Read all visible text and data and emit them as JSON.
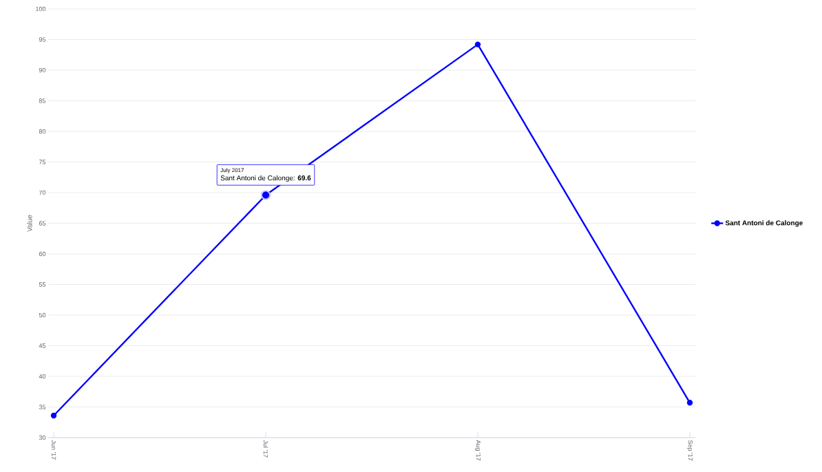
{
  "chart_data": {
    "type": "line",
    "ylabel": "Value",
    "categories": [
      "Jun '17",
      "Jul '17",
      "Aug '17",
      "Sep '17"
    ],
    "series": [
      {
        "name": "Sant Antoni de Calonge",
        "color": "#0000ff",
        "values": [
          33.6,
          69.6,
          94.2,
          35.7
        ]
      }
    ],
    "ylim": [
      30,
      100
    ],
    "yticks": [
      30,
      35,
      40,
      45,
      50,
      55,
      60,
      65,
      70,
      75,
      80,
      85,
      90,
      95,
      100
    ],
    "grid": "y",
    "legend": "right",
    "marker": "circle",
    "line_style": "solid",
    "annotations": [
      "July 2017",
      {
        "text": "Sant Antoni de Calonge: **69.6**",
        "x": "Jul '17",
        "y": 69.6
      }
    ]
  }
}
